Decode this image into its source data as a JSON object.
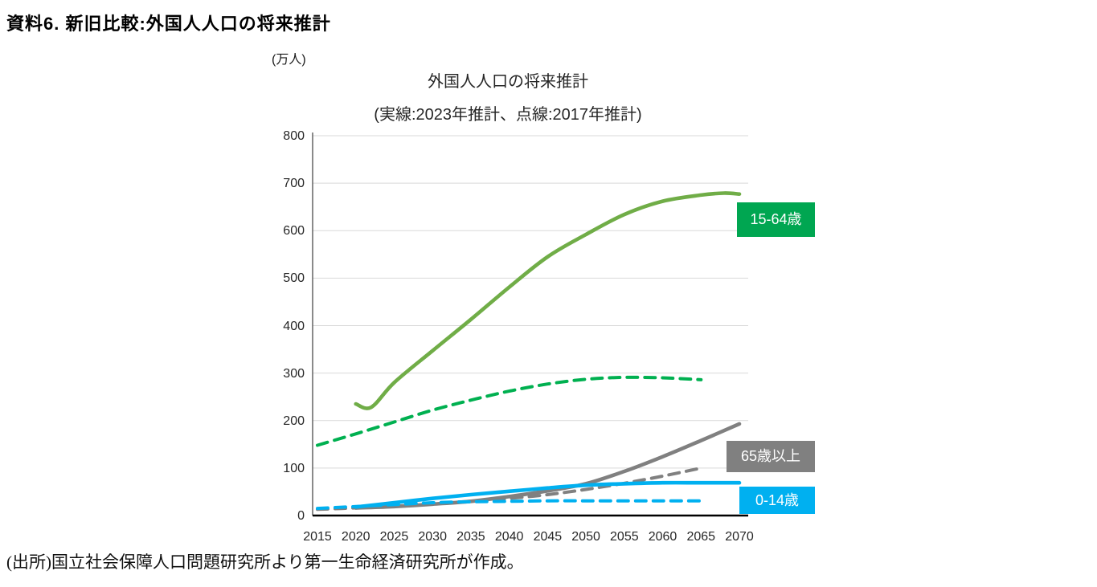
{
  "page": {
    "title": "資料6. 新旧比較:外国人人口の将来推計",
    "source": "(出所)国立社会保障人口問題研究所より第一生命経済研究所が作成。"
  },
  "chart": {
    "unit_label": "(万人)",
    "title": "外国人人口の将来推計",
    "subtitle": "(実線:2023年推計、点線:2017年推計)"
  },
  "colors": {
    "green_solid": "#70AD47",
    "green_dashed": "#00B050",
    "gray": "#808080",
    "blue": "#00B0F0",
    "grid": "#D9D9D9",
    "y_axis": "#595959",
    "x_axis": "#000000"
  },
  "chart_data": {
    "type": "line",
    "title": "外国人人口の将来推計",
    "subtitle": "(実線:2023年推計、点線:2017年推計)",
    "unit": "万人",
    "xlim": [
      2015,
      2070
    ],
    "ylim": [
      0,
      800
    ],
    "y_tick_step": 100,
    "x_ticks": [
      2015,
      2020,
      2025,
      2030,
      2035,
      2040,
      2045,
      2050,
      2055,
      2060,
      2065,
      2070
    ],
    "y_ticks": [
      0,
      100,
      200,
      300,
      400,
      500,
      600,
      700,
      800
    ],
    "grid": "horizontal",
    "legend_position": "right-inline-badges",
    "legend_badges": [
      {
        "label": "15-64歳",
        "color": "#00A651"
      },
      {
        "label": "65歳以上",
        "color": "#808080"
      },
      {
        "label": "0-14歳",
        "color": "#00B0F0"
      }
    ],
    "series": [
      {
        "name": "15-64歳(2023年推計)",
        "age_group": "15-64歳",
        "estimate": "2023年推計",
        "style": "solid",
        "color": "#70AD47",
        "x": [
          2020,
          2022,
          2025,
          2030,
          2035,
          2040,
          2045,
          2050,
          2055,
          2060,
          2065,
          2068,
          2070
        ],
        "values": [
          235,
          228,
          280,
          347,
          413,
          481,
          545,
          592,
          634,
          662,
          675,
          679,
          677
        ]
      },
      {
        "name": "15-64歳(2017年推計)",
        "age_group": "15-64歳",
        "estimate": "2017年推計",
        "style": "dashed",
        "color": "#00B050",
        "x": [
          2015,
          2020,
          2025,
          2030,
          2035,
          2040,
          2045,
          2050,
          2055,
          2060,
          2065
        ],
        "values": [
          148,
          172,
          197,
          222,
          243,
          262,
          277,
          287,
          291,
          290,
          286
        ]
      },
      {
        "name": "65歳以上(2023年推計)",
        "age_group": "65歳以上",
        "estimate": "2023年推計",
        "style": "solid",
        "color": "#808080",
        "x": [
          2020,
          2025,
          2030,
          2035,
          2040,
          2045,
          2050,
          2055,
          2060,
          2065,
          2070
        ],
        "values": [
          16,
          19,
          24,
          30,
          40,
          52,
          67,
          93,
          124,
          158,
          193
        ]
      },
      {
        "name": "65歳以上(2017年推計)",
        "age_group": "65歳以上",
        "estimate": "2017年推計",
        "style": "dashed",
        "color": "#808080",
        "x": [
          2015,
          2020,
          2025,
          2030,
          2035,
          2040,
          2045,
          2050,
          2055,
          2060,
          2065
        ],
        "values": [
          13,
          16,
          20,
          25,
          30,
          36,
          44,
          55,
          68,
          83,
          100
        ]
      },
      {
        "name": "0-14歳(2023年推計)",
        "age_group": "0-14歳",
        "estimate": "2023年推計",
        "style": "solid",
        "color": "#00B0F0",
        "x": [
          2020,
          2025,
          2030,
          2035,
          2040,
          2045,
          2050,
          2055,
          2060,
          2065,
          2070
        ],
        "values": [
          18,
          27,
          36,
          44,
          51,
          58,
          64,
          67,
          69,
          69,
          69
        ]
      },
      {
        "name": "0-14歳(2017年推計)",
        "age_group": "0-14歳",
        "estimate": "2017年推計",
        "style": "dashed",
        "color": "#00B0F0",
        "x": [
          2015,
          2020,
          2025,
          2030,
          2035,
          2040,
          2045,
          2050,
          2055,
          2060,
          2065
        ],
        "values": [
          15,
          19,
          23,
          27,
          29,
          30,
          31,
          31,
          31,
          31,
          31
        ]
      }
    ]
  }
}
